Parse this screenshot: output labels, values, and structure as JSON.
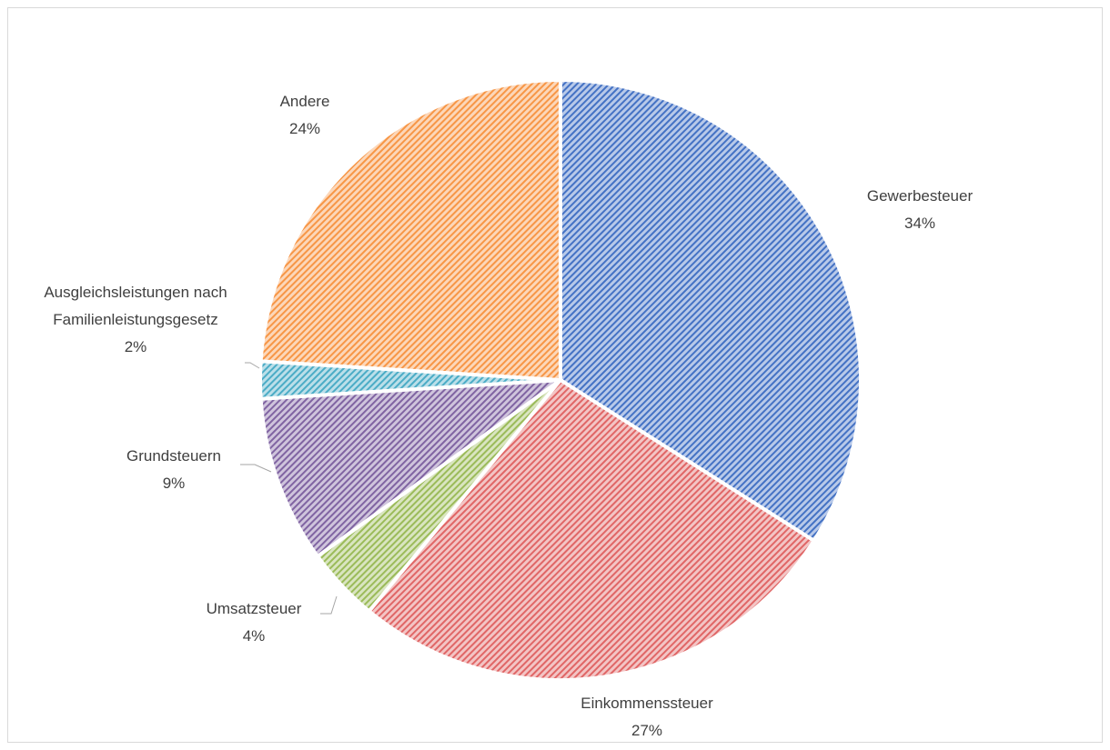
{
  "chart_data": {
    "type": "pie",
    "slices": [
      {
        "name": "Gewerbesteuer",
        "value": 34,
        "label": "34%",
        "color": "#4472c4"
      },
      {
        "name": "Einkommenssteuer",
        "value": 27,
        "label": "27%",
        "color": "#e06666"
      },
      {
        "name": "Umsatzsteuer",
        "value": 4,
        "label": "4%",
        "color": "#9bbb59"
      },
      {
        "name": "Grundsteuern",
        "value": 9,
        "label": "9%",
        "color": "#8064a2"
      },
      {
        "name": "Ausgleichsleistungen nach Familienleistungsgesetz",
        "value": 2,
        "label": "2%",
        "color": "#4bacc6"
      },
      {
        "name": "Andere",
        "value": 24,
        "label": "24%",
        "color": "#f79646"
      }
    ],
    "start": "12 o'clock",
    "direction": "clockwise",
    "fill_style": "diagonal hatch",
    "legend": "none",
    "data_labels": "outside, category name and percent"
  }
}
